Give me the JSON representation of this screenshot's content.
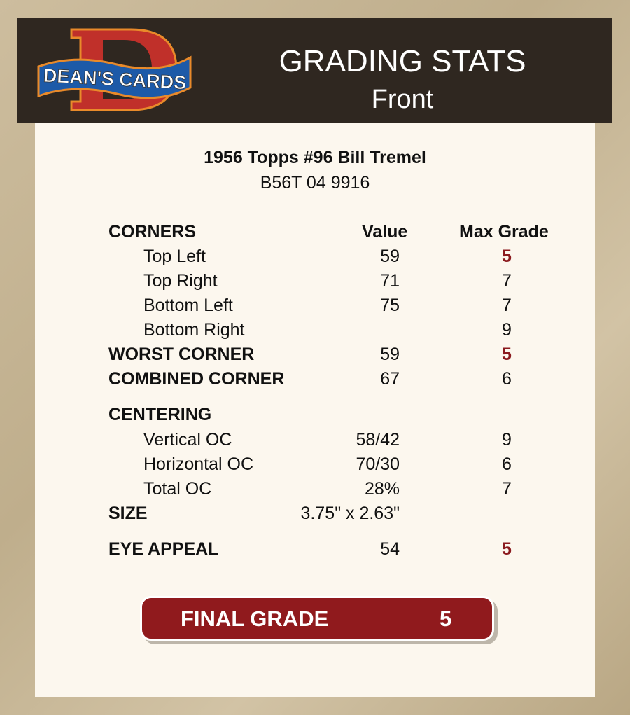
{
  "header": {
    "logo_text": "DEAN'S CARDS",
    "title": "GRADING STATS",
    "subtitle": "Front"
  },
  "card": {
    "name": "1956 Topps #96 Bill Tremel",
    "cert": "B56T 04 9916"
  },
  "columns": {
    "value": "Value",
    "max_grade": "Max Grade"
  },
  "corners": {
    "label": "CORNERS",
    "rows": [
      {
        "label": "Top Left",
        "value": "59",
        "max": "5",
        "flag": true
      },
      {
        "label": "Top Right",
        "value": "71",
        "max": "7"
      },
      {
        "label": "Bottom Left",
        "value": "75",
        "max": "7"
      },
      {
        "label": "Bottom Right",
        "value": "",
        "max": "9"
      }
    ]
  },
  "worst_corner": {
    "label": "WORST CORNER",
    "value": "59",
    "max": "5"
  },
  "combined_corner": {
    "label": "COMBINED CORNER",
    "value": "67",
    "max": "6"
  },
  "centering": {
    "label": "CENTERING",
    "rows": [
      {
        "label": "Vertical OC",
        "value": "58/42",
        "max": "9"
      },
      {
        "label": "Horizontal OC",
        "value": "70/30",
        "max": "6"
      },
      {
        "label": "Total OC",
        "value": "28%",
        "max": "7"
      }
    ]
  },
  "size": {
    "label": "SIZE",
    "value": "3.75\" x 2.63\""
  },
  "eye_appeal": {
    "label": "EYE APPEAL",
    "value": "54",
    "max": "5"
  },
  "final": {
    "label": "FINAL GRADE",
    "value": "5"
  },
  "colors": {
    "header_bg": "#2f2720",
    "accent_red": "#8b1a1e",
    "final_bg": "#901a1d"
  }
}
